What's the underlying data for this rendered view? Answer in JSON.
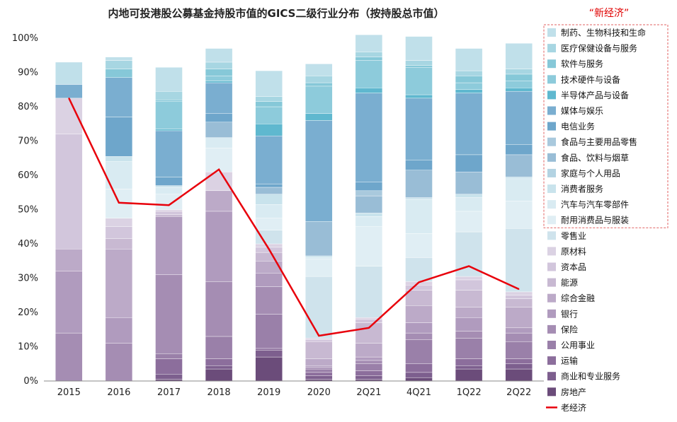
{
  "chart_data": {
    "type": "bar",
    "stacked": true,
    "title": "内地可投港股公募基金持股市值的GICS二级行业分布（按持股总市值）",
    "annotation": "“新经济”",
    "categories": [
      "2015",
      "2016",
      "2017",
      "2018",
      "2019",
      "2020",
      "2Q21",
      "4Q21",
      "1Q22",
      "2Q22"
    ],
    "y_ticks": [
      "0%",
      "10%",
      "20%",
      "30%",
      "40%",
      "50%",
      "60%",
      "70%",
      "80%",
      "90%",
      "100%"
    ],
    "ylim": [
      0,
      100
    ],
    "series": [
      {
        "name": "房地产",
        "color": "#6b4c7a",
        "values": [
          0,
          0,
          0.5,
          3.5,
          7,
          0.5,
          0.5,
          1,
          3.5,
          3.5
        ]
      },
      {
        "name": "商业和专业服务",
        "color": "#7d5f8e",
        "values": [
          0,
          0,
          1.5,
          1,
          2,
          1,
          1,
          1.5,
          1,
          1.5
        ]
      },
      {
        "name": "运输",
        "color": "#8c6e9c",
        "values": [
          0,
          0,
          4.5,
          2,
          0.5,
          1,
          1.5,
          2.5,
          2,
          1.5
        ]
      },
      {
        "name": "公用事业",
        "color": "#9a80a9",
        "values": [
          0,
          0,
          1.5,
          6.5,
          10,
          1,
          2,
          7,
          6,
          5
        ]
      },
      {
        "name": "保险",
        "color": "#a58db3",
        "values": [
          14,
          11,
          23,
          16,
          8,
          0.5,
          1,
          2,
          2,
          2.5
        ]
      },
      {
        "name": "银行",
        "color": "#b09bbe",
        "values": [
          18,
          7.5,
          17,
          20.5,
          4,
          0.5,
          1,
          3,
          4,
          1.5
        ]
      },
      {
        "name": "综合金融",
        "color": "#bcaac8",
        "values": [
          6.5,
          20,
          0,
          6,
          3.5,
          2,
          4,
          5,
          3,
          6
        ]
      },
      {
        "name": "能源",
        "color": "#c8b9d2",
        "values": [
          0,
          3,
          0.5,
          0,
          2.5,
          5,
          6,
          4.5,
          5,
          2.5
        ]
      },
      {
        "name": "资本品",
        "color": "#d2c6dc",
        "values": [
          33.5,
          3.5,
          1,
          0,
          1.5,
          0.5,
          1,
          1.5,
          3,
          1
        ]
      },
      {
        "name": "原材料",
        "color": "#dbd2e3",
        "values": [
          10.5,
          2.5,
          0.5,
          5.5,
          1,
          0.5,
          0.5,
          1,
          1,
          1
        ]
      },
      {
        "name": "零售业",
        "color": "#cfe3ec",
        "values": [
          0,
          0,
          0,
          0,
          4,
          18,
          15,
          7,
          13,
          18.5
        ]
      },
      {
        "name": "耐用消费品与服装",
        "color": "#e0eef4",
        "values": [
          0,
          8.5,
          4.5,
          7,
          3.5,
          5,
          11.5,
          7,
          6,
          8
        ]
      },
      {
        "name": "汽车与汽车零部件",
        "color": "#d9ebf2",
        "values": [
          0,
          8,
          2,
          3,
          4,
          0.5,
          3,
          10,
          4,
          6.5
        ]
      },
      {
        "name": "消费者服务",
        "color": "#c9e3ec",
        "values": [
          0,
          1.5,
          0.5,
          0,
          3,
          0.5,
          1,
          0.5,
          1,
          0.5
        ]
      },
      {
        "name": "家庭与个人用品",
        "color": "#b3d3e2",
        "values": [
          0,
          0,
          0,
          0,
          0,
          0,
          0,
          0,
          0,
          0
        ]
      },
      {
        "name": "食品、饮料与烟草",
        "color": "#99bdd6",
        "values": [
          0,
          0,
          0,
          4.5,
          2,
          10,
          5,
          8,
          6.5,
          6.5
        ]
      },
      {
        "name": "食品与主要用品零售",
        "color": "#a9c9dd",
        "values": [
          0,
          0,
          0,
          0,
          0,
          0,
          1.5,
          0,
          0,
          0
        ]
      },
      {
        "name": "电信业务",
        "color": "#6ea6cb",
        "values": [
          0,
          11.5,
          2.5,
          2.5,
          1,
          0,
          2.5,
          3,
          5,
          3
        ]
      },
      {
        "name": "媒体与娱乐",
        "color": "#7aaed0",
        "values": [
          4,
          11.5,
          13.5,
          9,
          14,
          29.5,
          26,
          18,
          18,
          15.5
        ]
      },
      {
        "name": "半导体产品与设备",
        "color": "#5fb8cf",
        "values": [
          0,
          0,
          0.5,
          0.5,
          3.5,
          2,
          1.5,
          1,
          1,
          1
        ]
      },
      {
        "name": "技术硬件与设备",
        "color": "#8dcbdb",
        "values": [
          0,
          0,
          8,
          1.5,
          5,
          8,
          8,
          8,
          2,
          2
        ]
      },
      {
        "name": "软件与服务",
        "color": "#86c8d8",
        "values": [
          0,
          2.5,
          0.5,
          2,
          1.5,
          1,
          1,
          0.5,
          2,
          2
        ]
      },
      {
        "name": "医疗保健设备与服务",
        "color": "#a7d6e2",
        "values": [
          0,
          2.5,
          2.5,
          2,
          1.5,
          2,
          1.5,
          1.5,
          1.5,
          1.5
        ]
      },
      {
        "name": "制药、生物科技和生命",
        "color": "#c0e0ea",
        "values": [
          6.5,
          1,
          7,
          4,
          7.5,
          3.5,
          5,
          7,
          6.5,
          7.5
        ]
      }
    ],
    "line": {
      "name": "老经济",
      "color": "#e8000b",
      "values": [
        82.5,
        52,
        51.3,
        61.7,
        38.5,
        13.2,
        15.5,
        28.8,
        33.5,
        26.8
      ]
    },
    "legend_position": "right",
    "new_economy_group": [
      "制药、生物科技和生命",
      "医疗保健设备与服务",
      "软件与服务",
      "技术硬件与设备",
      "半导体产品与设备",
      "媒体与娱乐",
      "电信业务",
      "食品与主要用品零售",
      "食品、饮料与烟草",
      "家庭与个人用品",
      "消费者服务",
      "汽车与汽车零部件",
      "耐用消费品与服装"
    ]
  }
}
